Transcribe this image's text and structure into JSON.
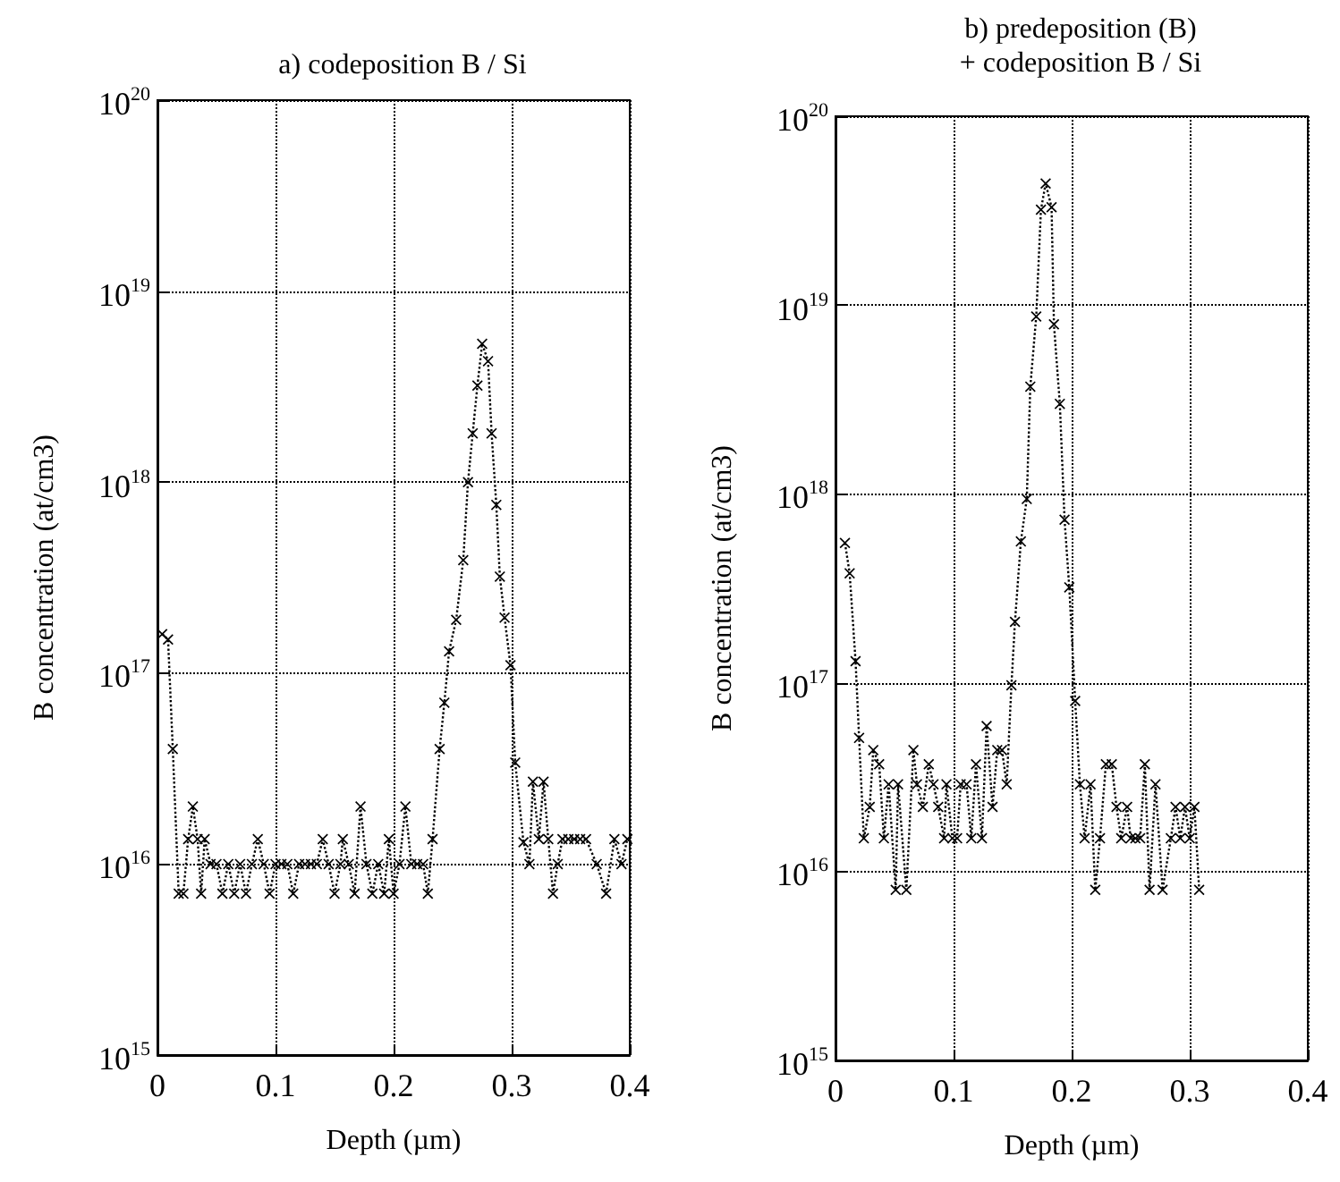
{
  "chart_data": [
    {
      "type": "line",
      "title": "a) codeposition B / Si",
      "xlabel": "Depth (µm)",
      "ylabel": "B concentration (at/cm3)",
      "log": "y",
      "grid": true,
      "marker": "cross",
      "line_style": "dotted",
      "xlim": [
        0,
        0.4
      ],
      "xticks": [
        0,
        0.1,
        0.2,
        0.3,
        0.4
      ],
      "ylim": [
        1000000000000000.0,
        1e+20
      ],
      "yticks": [
        {
          "value": 1000000000000000.0,
          "label": "10$^{15}$"
        },
        {
          "value": 1e+16,
          "label": "10$^{16}$"
        },
        {
          "value": 1e+17,
          "label": "10$^{17}$"
        },
        {
          "value": 1e+18,
          "label": "10$^{18}$"
        },
        {
          "value": 1e+19,
          "label": "10$^{19}$"
        },
        {
          "value": 1e+20,
          "label": "10$^{20}$"
        }
      ],
      "series": [
        {
          "color": "#000000",
          "x": [
            0.004,
            0.009,
            0.013,
            0.018,
            0.022,
            0.026,
            0.03,
            0.034,
            0.037,
            0.04,
            0.045,
            0.05,
            0.055,
            0.06,
            0.065,
            0.07,
            0.075,
            0.08,
            0.085,
            0.09,
            0.095,
            0.1,
            0.105,
            0.11,
            0.115,
            0.12,
            0.125,
            0.13,
            0.135,
            0.14,
            0.145,
            0.15,
            0.155,
            0.157,
            0.162,
            0.167,
            0.172,
            0.177,
            0.182,
            0.187,
            0.192,
            0.196,
            0.2,
            0.205,
            0.21,
            0.215,
            0.22,
            0.225,
            0.229,
            0.233,
            0.239,
            0.243,
            0.247,
            0.253,
            0.259,
            0.263,
            0.267,
            0.271,
            0.275,
            0.28,
            0.283,
            0.287,
            0.29,
            0.294,
            0.299,
            0.303,
            0.31,
            0.315,
            0.318,
            0.323,
            0.327,
            0.331,
            0.335,
            0.339,
            0.343,
            0.348,
            0.353,
            0.358,
            0.363,
            0.372,
            0.38,
            0.387,
            0.393,
            0.398
          ],
          "values": [
            1.6e+17,
            1.5e+17,
            4e+16,
            7000000000000000.0,
            7000000000000000.0,
            1.35e+16,
            2e+16,
            1.35e+16,
            7000000000000000.0,
            1.35e+16,
            1e+16,
            1e+16,
            7000000000000000.0,
            1e+16,
            7000000000000000.0,
            1e+16,
            7000000000000000.0,
            1e+16,
            1.35e+16,
            1e+16,
            7000000000000000.0,
            1e+16,
            1e+16,
            1e+16,
            7000000000000000.0,
            1e+16,
            1e+16,
            1e+16,
            1e+16,
            1.35e+16,
            1e+16,
            7000000000000000.0,
            1e+16,
            1.35e+16,
            1e+16,
            7000000000000000.0,
            2e+16,
            1e+16,
            7000000000000000.0,
            1e+16,
            7000000000000000.0,
            1.35e+16,
            7000000000000000.0,
            1e+16,
            2e+16,
            1e+16,
            1e+16,
            1e+16,
            7000000000000000.0,
            1.35e+16,
            4e+16,
            7e+16,
            1.3e+17,
            1.9e+17,
            3.9e+17,
            1e+18,
            1.8e+18,
            3.2e+18,
            5.3e+18,
            4.3e+18,
            1.8e+18,
            7.6e+17,
            3.2e+17,
            1.95e+17,
            1.1e+17,
            3.4e+16,
            1.3e+16,
            1e+16,
            2.7e+16,
            1.35e+16,
            2.7e+16,
            1.35e+16,
            7000000000000000.0,
            1e+16,
            1.35e+16,
            1.35e+16,
            1.35e+16,
            1.35e+16,
            1.35e+16,
            1e+16,
            7000000000000000.0,
            1.35e+16,
            1e+16,
            1.35e+16
          ]
        }
      ]
    },
    {
      "type": "line",
      "title": "b) predeposition (B)\n+ codeposition B / Si",
      "xlabel": "Depth (µm)",
      "ylabel": "B concentration (at/cm3)",
      "log": "y",
      "grid": true,
      "marker": "cross",
      "line_style": "dotted",
      "xlim": [
        0,
        0.4
      ],
      "xticks": [
        0,
        0.1,
        0.2,
        0.3,
        0.4
      ],
      "ylim": [
        1000000000000000.0,
        1e+20
      ],
      "yticks": [
        {
          "value": 1000000000000000.0,
          "label": "10$^{15}$"
        },
        {
          "value": 1e+16,
          "label": "10$^{16}$"
        },
        {
          "value": 1e+17,
          "label": "10$^{17}$"
        },
        {
          "value": 1e+18,
          "label": "10$^{18}$"
        },
        {
          "value": 1e+19,
          "label": "10$^{19}$"
        },
        {
          "value": 1e+20,
          "label": "10$^{20}$"
        }
      ],
      "series": [
        {
          "color": "#000000",
          "x": [
            0.008,
            0.012,
            0.017,
            0.02,
            0.024,
            0.029,
            0.032,
            0.037,
            0.041,
            0.045,
            0.051,
            0.053,
            0.06,
            0.066,
            0.069,
            0.074,
            0.079,
            0.083,
            0.087,
            0.092,
            0.094,
            0.099,
            0.103,
            0.106,
            0.111,
            0.115,
            0.119,
            0.124,
            0.128,
            0.133,
            0.137,
            0.141,
            0.145,
            0.149,
            0.152,
            0.157,
            0.162,
            0.165,
            0.17,
            0.174,
            0.178,
            0.183,
            0.185,
            0.19,
            0.194,
            0.198,
            0.203,
            0.207,
            0.211,
            0.216,
            0.22,
            0.224,
            0.229,
            0.234,
            0.238,
            0.242,
            0.247,
            0.25,
            0.254,
            0.258,
            0.262,
            0.266,
            0.271,
            0.277,
            0.284,
            0.288,
            0.292,
            0.296,
            0.3,
            0.304,
            0.308
          ],
          "values": [
            5.5e+17,
            3.8e+17,
            1.3e+17,
            5.1e+16,
            1.5e+16,
            2.2e+16,
            4.4e+16,
            3.7e+16,
            1.5e+16,
            2.9e+16,
            8000000000000000.0,
            2.9e+16,
            8000000000000000.0,
            4.4e+16,
            2.9e+16,
            2.2e+16,
            3.7e+16,
            2.9e+16,
            2.2e+16,
            1.5e+16,
            2.9e+16,
            1.5e+16,
            1.5e+16,
            2.9e+16,
            2.9e+16,
            1.5e+16,
            3.7e+16,
            1.5e+16,
            5.9e+16,
            2.2e+16,
            4.4e+16,
            4.4e+16,
            2.9e+16,
            9.7e+16,
            2.1e+17,
            5.6e+17,
            9.4e+17,
            3.7e+18,
            8.7e+18,
            3.2e+19,
            4.4e+19,
            3.3e+19,
            7.9e+18,
            3e+18,
            7.3e+17,
            3.2e+17,
            8e+16,
            2.9e+16,
            1.5e+16,
            2.9e+16,
            8000000000000000.0,
            1.5e+16,
            3.7e+16,
            3.7e+16,
            2.2e+16,
            1.5e+16,
            2.2e+16,
            1.5e+16,
            1.5e+16,
            1.5e+16,
            3.7e+16,
            8000000000000000.0,
            2.9e+16,
            8000000000000000.0,
            1.5e+16,
            2.2e+16,
            1.5e+16,
            2.2e+16,
            1.5e+16,
            2.2e+16,
            8000000000000000.0
          ]
        }
      ]
    }
  ]
}
